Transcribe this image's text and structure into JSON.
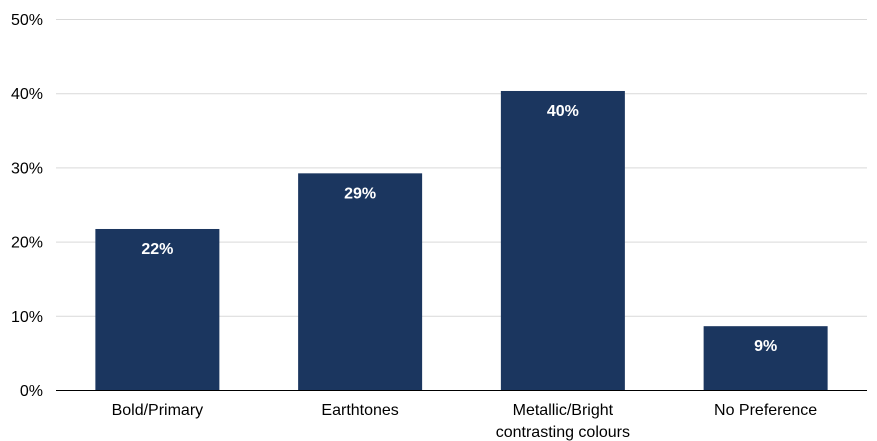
{
  "chart_data": {
    "type": "bar",
    "categories": [
      [
        "Bold/Primary"
      ],
      [
        "Earthtones"
      ],
      [
        "Metallic/Bright",
        "contrasting colours"
      ],
      [
        "No Preference"
      ]
    ],
    "values": [
      21.7,
      29.2,
      40.3,
      8.6
    ],
    "data_labels": [
      "22%",
      "29%",
      "40%",
      "9%"
    ],
    "ylim": [
      0,
      50
    ],
    "yticks": [
      0,
      10,
      20,
      30,
      40,
      50
    ],
    "ytick_labels": [
      "0%",
      "10%",
      "20%",
      "30%",
      "40%",
      "50%"
    ],
    "title": "",
    "xlabel": "",
    "ylabel": "",
    "grid": true,
    "bar_color": "#1b365f",
    "label_color": "#ffffff",
    "gridline_color": "#d9d9d9"
  }
}
